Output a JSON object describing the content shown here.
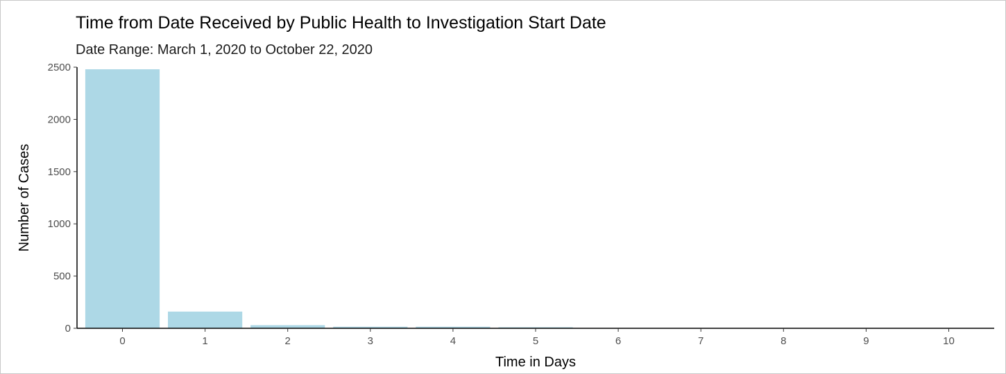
{
  "chart_data": {
    "type": "bar",
    "title": "Time from Date Received by Public Health to Investigation Start Date",
    "subtitle": "Date Range: March 1, 2020 to October 22, 2020",
    "xlabel": "Time in Days",
    "ylabel": "Number of Cases",
    "categories": [
      "0",
      "1",
      "2",
      "3",
      "4",
      "5",
      "6",
      "7",
      "8",
      "9",
      "10"
    ],
    "values": [
      2480,
      160,
      30,
      15,
      15,
      10,
      3,
      2,
      2,
      1,
      1
    ],
    "ylim": [
      0,
      2500
    ],
    "yticks": [
      "0",
      "500",
      "1000",
      "1500",
      "2000",
      "2500"
    ],
    "bar_color": "#add8e6",
    "grid": false,
    "legend": "none"
  }
}
